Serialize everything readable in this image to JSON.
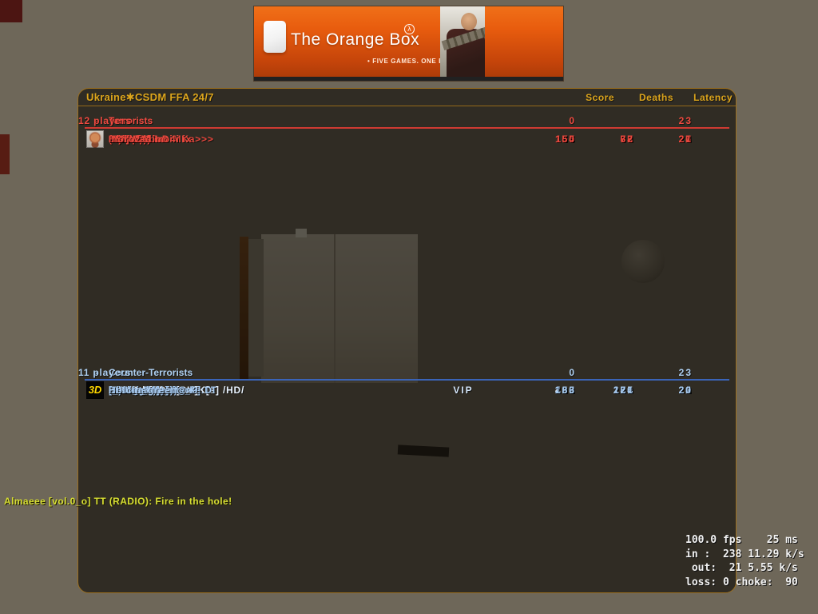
{
  "banner": {
    "logo_title": "The Orange Box",
    "registered_mark": "λ",
    "tagline": "• FIVE GAMES. ONE BOX.",
    "tiles": [
      "gordon-freeman-photo",
      "portal-figure-photo",
      "tf2-heavy-photo"
    ]
  },
  "scoreboard": {
    "server_name": "Ukraine✱CSDM FFA 24/7",
    "columns": [
      "Score",
      "Deaths",
      "Latency"
    ],
    "colors": {
      "title_gold": "#dca51c",
      "terrorist_red": "#e8473d",
      "ct_blue": "#a6c9ee",
      "t_line": "#cf3a32",
      "ct_line": "#3a64b8",
      "panel_border": "#9c6f1e",
      "chat_yellow": "#d6dd33"
    },
    "teams": [
      {
        "name": "Terrorists",
        "separator": "-",
        "players_label": "12 players",
        "score": "0",
        "latency": "23",
        "players": [
          {
            "name": "MADZAL",
            "score": "148",
            "deaths": "65",
            "latency": "26"
          },
          {
            "name": "Frod",
            "score": "116",
            "deaths": "62",
            "latency": "22",
            "avatar": "spray-frod"
          },
          {
            "name": "<<<AK-47-DiMKa>>>",
            "score": "78",
            "deaths": "53",
            "latency": "24",
            "avatar": "spray-clown"
          },
          {
            "name": "ScrepiCoco",
            "score": "76",
            "deaths": "84",
            "latency": "20"
          },
          {
            "name": ".:Mix:.",
            "score": "73",
            "deaths": "57",
            "latency": "27"
          },
          {
            "name": "(2)Snipe",
            "score": "66",
            "deaths": "90",
            "latency": "20"
          },
          {
            "name": "Chris :))",
            "score": "65",
            "deaths": "93",
            "latency": "26"
          },
          {
            "name": "Snipe",
            "score": "57",
            "deaths": "99",
            "latency": "23"
          },
          {
            "name": "9 ska3al mo4i ix",
            "score": "56",
            "deaths": "91",
            "latency": "28"
          },
          {
            "name": "9 noob",
            "score": "55",
            "deaths": "77",
            "latency": "20"
          },
          {
            "name": "HS | Vadim",
            "score": "54",
            "deaths": "33",
            "latency": "27"
          },
          {
            "name": "moroz",
            "score": "0",
            "deaths": "2",
            "latency": "21"
          }
        ]
      },
      {
        "name": "Counter-Terrorists",
        "separator": "-",
        "players_label": "11 players",
        "score": "0",
        "latency": "23",
        "players": [
          {
            "name": "A.M.D | [3D]e[SH]K[a] /HD/",
            "score": "431",
            "deaths": "105",
            "latency": "26",
            "avatar": "logo-3d",
            "avatar_text": "3D",
            "highlight": true
          },
          {
            "name": "[_DeN_4K_]",
            "score": "310",
            "deaths": "249",
            "latency": "24"
          },
          {
            "name": "Almaeee [vol.0_o] TT",
            "score": "205",
            "deaths": "94",
            "latency": "23"
          },
          {
            "name": "(1)Snipe",
            "score": "158",
            "deaths": "191",
            "latency": "21"
          },
          {
            "name": "Davay Dosvidanie:D",
            "score": "138",
            "deaths": "259",
            "latency": "29"
          },
          {
            "name": "^Valera^)))",
            "score": "133",
            "deaths": "250",
            "latency": "26"
          },
          {
            "name": "Bots_team / Len9",
            "score": "131",
            "deaths": "250",
            "latency": "29"
          },
          {
            "name": "sosi nyblo:)))",
            "score": "126",
            "deaths": "226",
            "latency": "22"
          },
          {
            "name": "Bunker✱ white",
            "score": "99",
            "deaths": "219",
            "latency": "21"
          },
          {
            "name": "HeJI.ua",
            "score": "96",
            "deaths": "74",
            "latency": "20"
          },
          {
            "name": "Holcin_green@✱",
            "score": "83",
            "deaths": "121",
            "latency": "20",
            "tag": "VIP"
          }
        ]
      }
    ]
  },
  "chat_message": "Almaeee [vol.0_o] TT (RADIO): Fire in the hole!",
  "netgraph": {
    "lines": [
      "100.0 fps    25 ms",
      "in :  238 11.29 k/s",
      " out:  21 5.55 k/s",
      "loss: 0 choke:  90"
    ]
  }
}
